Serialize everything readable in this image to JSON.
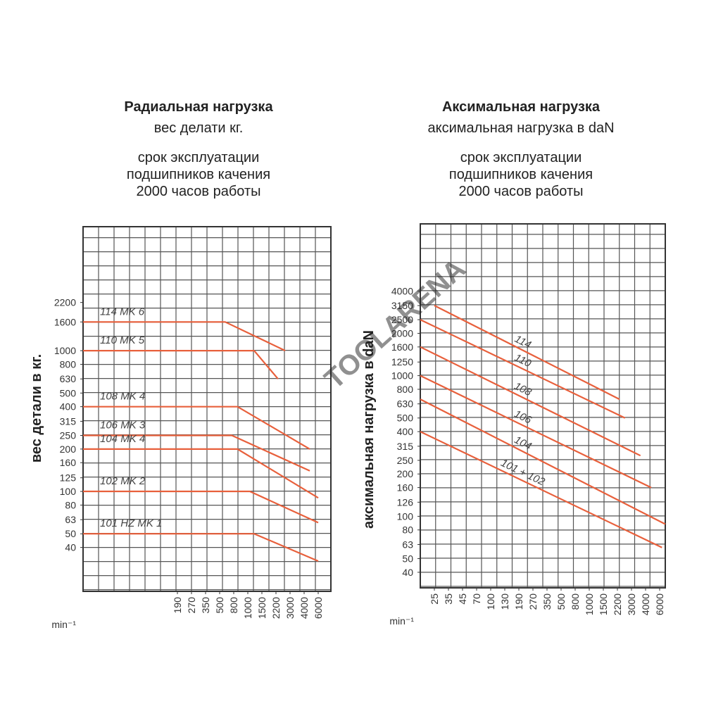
{
  "watermark": "TOOLARENA",
  "chart_data": [
    {
      "type": "line",
      "title": "Радиальная нагрузка",
      "subtitle": "вес делати кг.",
      "description": [
        "срок эксплуатации",
        "подшипников качения",
        "2000 часов работы"
      ],
      "ylabel": "вес детали в кг.",
      "xlabel": "min⁻¹",
      "xscale": "log",
      "yscale": "log",
      "grid": true,
      "xlim": [
        19,
        8600
      ],
      "xticks": [
        190,
        270,
        350,
        500,
        800,
        1000,
        1500,
        2200,
        3000,
        4000,
        6000
      ],
      "ylim": [
        19.5,
        7600
      ],
      "yticks": [
        2200,
        1600,
        1000,
        800,
        630,
        500,
        400,
        315,
        250,
        200,
        160,
        125,
        100,
        80,
        63,
        50,
        40
      ],
      "series": [
        {
          "name": "114 MK 6",
          "color": "#e8603c",
          "x": [
            19,
            600,
            2700
          ],
          "values": [
            1600,
            1600,
            1000
          ]
        },
        {
          "name": "110 MK 5",
          "color": "#e8603c",
          "x": [
            19,
            1200,
            2300
          ],
          "values": [
            1000,
            1000,
            630
          ]
        },
        {
          "name": "108 MK 4",
          "color": "#e8603c",
          "x": [
            19,
            850,
            4700
          ],
          "values": [
            400,
            400,
            200
          ]
        },
        {
          "name": "106 MK 3",
          "color": "#e8603c",
          "x": [
            19,
            750,
            4700
          ],
          "values": [
            250,
            250,
            140
          ]
        },
        {
          "name": "104 MK 4",
          "color": "#e8603c",
          "x": [
            19,
            850,
            6000
          ],
          "values": [
            200,
            200,
            90
          ]
        },
        {
          "name": "102 MK 2",
          "color": "#e8603c",
          "x": [
            19,
            1060,
            6000
          ],
          "values": [
            100,
            100,
            60
          ]
        },
        {
          "name": "101 HZ MK 1",
          "color": "#e8603c",
          "x": [
            19,
            1200,
            6000
          ],
          "values": [
            50,
            50,
            32
          ]
        }
      ]
    },
    {
      "type": "line",
      "title": "Аксимальная нагрузка",
      "subtitle": "аксимальная нагрузка в daN",
      "description": [
        "срок эксплуатации",
        "подшипников качения",
        "2000 часов работы"
      ],
      "ylabel": "аксимальная нагрузка в daN",
      "xlabel": "min⁻¹",
      "xscale": "log",
      "yscale": "log",
      "grid": true,
      "xlim": [
        18,
        7000
      ],
      "xticks": [
        25,
        35,
        45,
        70,
        100,
        130,
        190,
        270,
        350,
        500,
        800,
        1000,
        1500,
        2200,
        3000,
        4000,
        6000
      ],
      "ylim": [
        31,
        12000
      ],
      "yticks": [
        4000,
        3150,
        2500,
        2000,
        1600,
        1250,
        1000,
        800,
        630,
        500,
        400,
        315,
        250,
        200,
        160,
        126,
        100,
        80,
        63,
        50,
        40
      ],
      "series": [
        {
          "name": "114",
          "color": "#e8603c",
          "x": [
            25,
            2300
          ],
          "values": [
            3150,
            680
          ]
        },
        {
          "name": "110",
          "color": "#e8603c",
          "x": [
            18,
            2600
          ],
          "values": [
            2500,
            500
          ]
        },
        {
          "name": "108",
          "color": "#e8603c",
          "x": [
            18,
            3600
          ],
          "values": [
            1600,
            270
          ]
        },
        {
          "name": "106",
          "color": "#e8603c",
          "x": [
            18,
            4700
          ],
          "values": [
            1000,
            160
          ]
        },
        {
          "name": "104",
          "color": "#e8603c",
          "x": [
            18,
            7000
          ],
          "values": [
            680,
            88
          ]
        },
        {
          "name": "101 + 102",
          "color": "#e8603c",
          "x": [
            18,
            6400
          ],
          "values": [
            400,
            60
          ]
        }
      ]
    }
  ]
}
